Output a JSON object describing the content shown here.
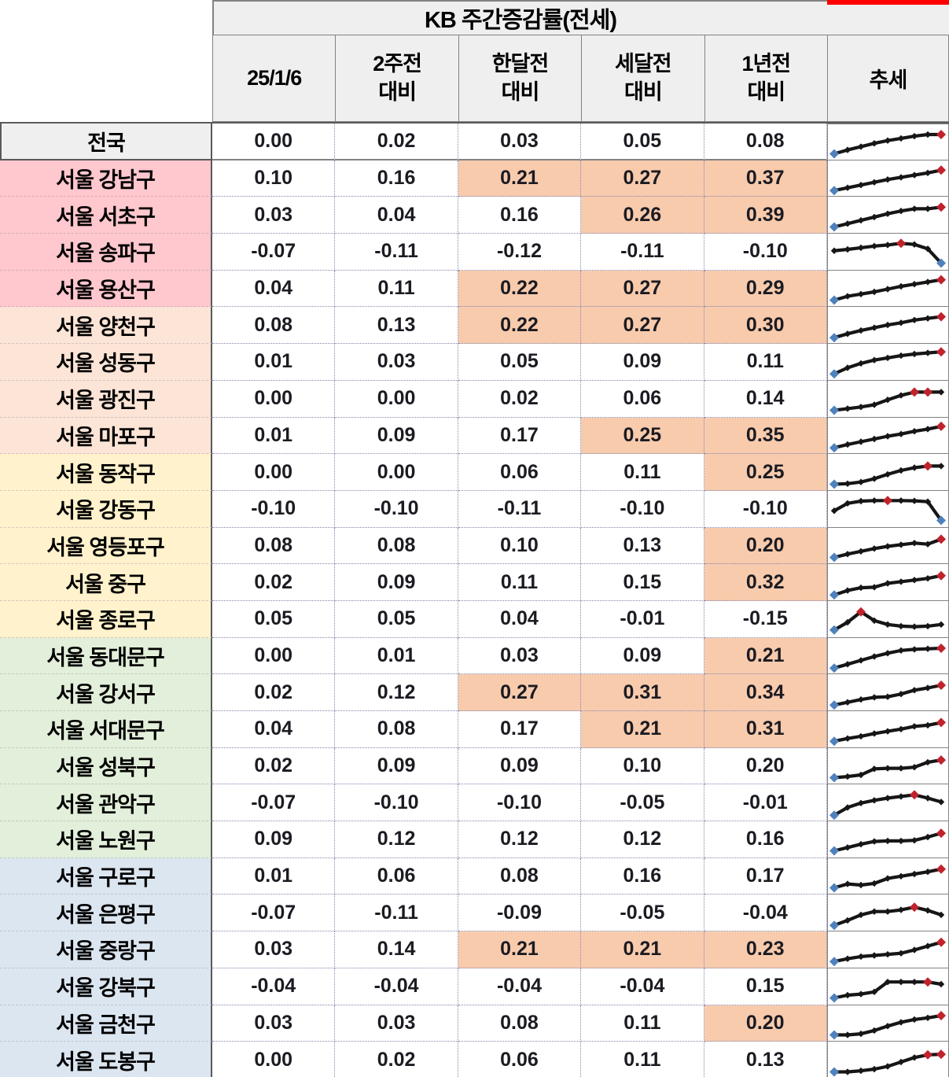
{
  "title": "KB 주간증감률(전세)",
  "trend_header": "추세",
  "columns": [
    "25/1/6",
    "2주전\n대비",
    "한달전\n대비",
    "세달전\n대비",
    "1년전\n대비"
  ],
  "colors": {
    "header_bg": "#efefef",
    "national_bg": "#efefef",
    "group_red": "#ffc7ce",
    "group_peach": "#fce4d6",
    "group_yellow": "#fff2cc",
    "group_green": "#e2efda",
    "group_blue": "#dce6f1",
    "highlight": "#f8cbad",
    "spark_line": "#161616",
    "spark_start": "#4f81bd",
    "spark_peak": "#c0232c",
    "top_bar": "#fe0000"
  },
  "chart_data": {
    "type": "table",
    "title": "KB 주간증감률(전세)",
    "columns": [
      "25/1/6",
      "2주전 대비",
      "한달전 대비",
      "세달전 대비",
      "1년전 대비",
      "추세"
    ],
    "rows": [
      {
        "label": "전국",
        "group": "gray",
        "values": [
          "0.00",
          "0.02",
          "0.03",
          "0.05",
          "0.08"
        ],
        "highlighted": [
          0,
          0,
          0,
          0,
          0
        ],
        "spark": {
          "v": [
            10,
            24,
            36,
            48,
            58,
            66,
            74,
            80,
            80
          ],
          "start": 0,
          "peaks": [
            8
          ]
        }
      },
      {
        "label": "서울 강남구",
        "group": "red",
        "values": [
          "0.10",
          "0.16",
          "0.21",
          "0.27",
          "0.37"
        ],
        "highlighted": [
          0,
          0,
          1,
          1,
          1
        ],
        "spark": {
          "v": [
            8,
            18,
            28,
            38,
            48,
            56,
            64,
            72,
            82
          ],
          "start": 0,
          "peaks": [
            8
          ]
        }
      },
      {
        "label": "서울 서초구",
        "group": "red",
        "values": [
          "0.03",
          "0.04",
          "0.16",
          "0.26",
          "0.39"
        ],
        "highlighted": [
          0,
          0,
          0,
          1,
          1
        ],
        "spark": {
          "v": [
            10,
            22,
            34,
            46,
            58,
            68,
            76,
            76,
            82
          ],
          "start": 0,
          "peaks": [
            8
          ]
        }
      },
      {
        "label": "서울 송파구",
        "group": "red",
        "values": [
          "-0.07",
          "-0.11",
          "-0.12",
          "-0.11",
          "-0.10"
        ],
        "highlighted": [
          0,
          0,
          0,
          0,
          0
        ],
        "spark": {
          "v": [
            55,
            60,
            66,
            72,
            76,
            82,
            78,
            62,
            10
          ],
          "start": 8,
          "peaks": [
            5
          ]
        }
      },
      {
        "label": "서울 용산구",
        "group": "red",
        "values": [
          "0.04",
          "0.11",
          "0.22",
          "0.27",
          "0.29"
        ],
        "highlighted": [
          0,
          0,
          1,
          1,
          1
        ],
        "spark": {
          "v": [
            10,
            24,
            32,
            40,
            50,
            60,
            68,
            76,
            84
          ],
          "start": 0,
          "peaks": [
            8
          ]
        }
      },
      {
        "label": "서울 양천구",
        "group": "peach",
        "values": [
          "0.08",
          "0.13",
          "0.22",
          "0.27",
          "0.30"
        ],
        "highlighted": [
          0,
          0,
          1,
          1,
          1
        ],
        "spark": {
          "v": [
            8,
            22,
            34,
            44,
            54,
            62,
            72,
            78,
            84
          ],
          "start": 0,
          "peaks": [
            8
          ]
        }
      },
      {
        "label": "서울 성동구",
        "group": "peach",
        "values": [
          "0.01",
          "0.03",
          "0.05",
          "0.09",
          "0.11"
        ],
        "highlighted": [
          0,
          0,
          0,
          0,
          0
        ],
        "spark": {
          "v": [
            8,
            30,
            46,
            58,
            66,
            74,
            80,
            84,
            88
          ],
          "start": 0,
          "peaks": [
            8
          ]
        }
      },
      {
        "label": "서울 광진구",
        "group": "peach",
        "values": [
          "0.00",
          "0.00",
          "0.02",
          "0.06",
          "0.14"
        ],
        "highlighted": [
          0,
          0,
          0,
          0,
          0
        ],
        "spark": {
          "v": [
            10,
            16,
            22,
            30,
            48,
            64,
            76,
            76,
            76
          ],
          "start": 0,
          "peaks": [
            6,
            7
          ]
        }
      },
      {
        "label": "서울 마포구",
        "group": "peach",
        "values": [
          "0.01",
          "0.09",
          "0.17",
          "0.25",
          "0.35"
        ],
        "highlighted": [
          0,
          0,
          0,
          1,
          1
        ],
        "spark": {
          "v": [
            8,
            20,
            30,
            40,
            50,
            58,
            68,
            76,
            86
          ],
          "start": 0,
          "peaks": [
            8
          ]
        }
      },
      {
        "label": "서울 동작구",
        "group": "yellow",
        "values": [
          "0.00",
          "0.00",
          "0.06",
          "0.11",
          "0.25"
        ],
        "highlighted": [
          0,
          0,
          0,
          0,
          1
        ],
        "spark": {
          "v": [
            10,
            12,
            18,
            30,
            46,
            60,
            70,
            76,
            76
          ],
          "start": 0,
          "peaks": [
            7
          ]
        }
      },
      {
        "label": "서울 강동구",
        "group": "yellow",
        "values": [
          "-0.10",
          "-0.10",
          "-0.11",
          "-0.10",
          "-0.10"
        ],
        "highlighted": [
          0,
          0,
          0,
          0,
          0
        ],
        "spark": {
          "v": [
            45,
            72,
            80,
            82,
            82,
            82,
            81,
            78,
            10
          ],
          "start": 8,
          "peaks": [
            4
          ]
        }
      },
      {
        "label": "서울 영등포구",
        "group": "yellow",
        "values": [
          "0.08",
          "0.08",
          "0.10",
          "0.13",
          "0.20"
        ],
        "highlighted": [
          0,
          0,
          0,
          0,
          1
        ],
        "spark": {
          "v": [
            10,
            22,
            32,
            42,
            50,
            56,
            62,
            58,
            76
          ],
          "start": 0,
          "peaks": [
            8
          ]
        }
      },
      {
        "label": "서울 중구",
        "group": "yellow",
        "values": [
          "0.02",
          "0.09",
          "0.11",
          "0.15",
          "0.32"
        ],
        "highlighted": [
          0,
          0,
          0,
          0,
          1
        ],
        "spark": {
          "v": [
            8,
            24,
            34,
            36,
            50,
            56,
            62,
            68,
            78
          ],
          "start": 0,
          "peaks": [
            8
          ]
        }
      },
      {
        "label": "서울 종로구",
        "group": "yellow",
        "values": [
          "0.05",
          "0.05",
          "0.04",
          "-0.01",
          "-0.15"
        ],
        "highlighted": [
          0,
          0,
          0,
          0,
          0
        ],
        "spark": {
          "v": [
            12,
            40,
            78,
            46,
            32,
            26,
            24,
            26,
            32
          ],
          "start": 0,
          "peaks": [
            2
          ]
        }
      },
      {
        "label": "서울 동대문구",
        "group": "green",
        "values": [
          "0.00",
          "0.01",
          "0.03",
          "0.09",
          "0.21"
        ],
        "highlighted": [
          0,
          0,
          0,
          0,
          1
        ],
        "spark": {
          "v": [
            8,
            22,
            36,
            50,
            62,
            72,
            76,
            78,
            80
          ],
          "start": 0,
          "peaks": [
            8
          ]
        }
      },
      {
        "label": "서울 강서구",
        "group": "green",
        "values": [
          "0.02",
          "0.12",
          "0.27",
          "0.31",
          "0.34"
        ],
        "highlighted": [
          0,
          0,
          1,
          1,
          1
        ],
        "spark": {
          "v": [
            8,
            18,
            28,
            36,
            38,
            48,
            62,
            70,
            80
          ],
          "start": 0,
          "peaks": [
            8
          ]
        }
      },
      {
        "label": "서울 서대문구",
        "group": "green",
        "values": [
          "0.04",
          "0.08",
          "0.17",
          "0.21",
          "0.31"
        ],
        "highlighted": [
          0,
          0,
          0,
          1,
          1
        ],
        "spark": {
          "v": [
            8,
            18,
            26,
            36,
            44,
            52,
            62,
            66,
            76
          ],
          "start": 0,
          "peaks": [
            8
          ]
        }
      },
      {
        "label": "서울 성북구",
        "group": "green",
        "values": [
          "0.02",
          "0.09",
          "0.09",
          "0.10",
          "0.20"
        ],
        "highlighted": [
          0,
          0,
          0,
          0,
          0
        ],
        "spark": {
          "v": [
            10,
            14,
            20,
            42,
            44,
            44,
            48,
            66,
            74
          ],
          "start": 0,
          "peaks": [
            8
          ]
        }
      },
      {
        "label": "서울 관악구",
        "group": "green",
        "values": [
          "-0.07",
          "-0.10",
          "-0.10",
          "-0.05",
          "-0.01"
        ],
        "highlighted": [
          0,
          0,
          0,
          0,
          0
        ],
        "spark": {
          "v": [
            8,
            36,
            52,
            62,
            70,
            76,
            82,
            70,
            56
          ],
          "start": 0,
          "peaks": [
            6
          ]
        }
      },
      {
        "label": "서울 노원구",
        "group": "green",
        "values": [
          "0.09",
          "0.12",
          "0.12",
          "0.12",
          "0.16"
        ],
        "highlighted": [
          0,
          0,
          0,
          0,
          0
        ],
        "spark": {
          "v": [
            10,
            22,
            34,
            44,
            46,
            46,
            48,
            60,
            74
          ],
          "start": 0,
          "peaks": [
            8
          ]
        }
      },
      {
        "label": "서울 구로구",
        "group": "blue",
        "values": [
          "0.01",
          "0.06",
          "0.08",
          "0.16",
          "0.17"
        ],
        "highlighted": [
          0,
          0,
          0,
          0,
          0
        ],
        "spark": {
          "v": [
            10,
            24,
            20,
            26,
            44,
            52,
            60,
            68,
            78
          ],
          "start": 0,
          "peaks": [
            8
          ]
        }
      },
      {
        "label": "서울 은평구",
        "group": "blue",
        "values": [
          "-0.07",
          "-0.11",
          "-0.09",
          "-0.05",
          "-0.04"
        ],
        "highlighted": [
          0,
          0,
          0,
          0,
          0
        ],
        "spark": {
          "v": [
            8,
            26,
            46,
            58,
            58,
            64,
            74,
            62,
            46
          ],
          "start": 0,
          "peaks": [
            6
          ]
        }
      },
      {
        "label": "서울 중랑구",
        "group": "blue",
        "values": [
          "0.03",
          "0.14",
          "0.21",
          "0.21",
          "0.23"
        ],
        "highlighted": [
          0,
          0,
          1,
          1,
          1
        ],
        "spark": {
          "v": [
            8,
            18,
            26,
            30,
            34,
            38,
            50,
            64,
            78
          ],
          "start": 0,
          "peaks": [
            8
          ]
        }
      },
      {
        "label": "서울 강북구",
        "group": "blue",
        "values": [
          "-0.04",
          "-0.04",
          "-0.04",
          "-0.04",
          "0.15"
        ],
        "highlighted": [
          0,
          0,
          0,
          0,
          0
        ],
        "spark": {
          "v": [
            10,
            20,
            24,
            32,
            68,
            68,
            68,
            68,
            60
          ],
          "start": 0,
          "peaks": [
            7
          ]
        }
      },
      {
        "label": "서울 금천구",
        "group": "blue",
        "values": [
          "0.03",
          "0.03",
          "0.08",
          "0.11",
          "0.20"
        ],
        "highlighted": [
          0,
          0,
          0,
          0,
          1
        ],
        "spark": {
          "v": [
            10,
            10,
            14,
            26,
            42,
            56,
            66,
            72,
            80
          ],
          "start": 0,
          "peaks": [
            8
          ]
        }
      },
      {
        "label": "서울 도봉구",
        "group": "blue",
        "values": [
          "0.00",
          "0.02",
          "0.06",
          "0.11",
          "0.13"
        ],
        "highlighted": [
          0,
          0,
          0,
          0,
          0
        ],
        "spark": {
          "v": [
            10,
            10,
            14,
            20,
            30,
            46,
            62,
            72,
            74
          ],
          "start": 0,
          "peaks": [
            7,
            8
          ]
        }
      }
    ]
  }
}
